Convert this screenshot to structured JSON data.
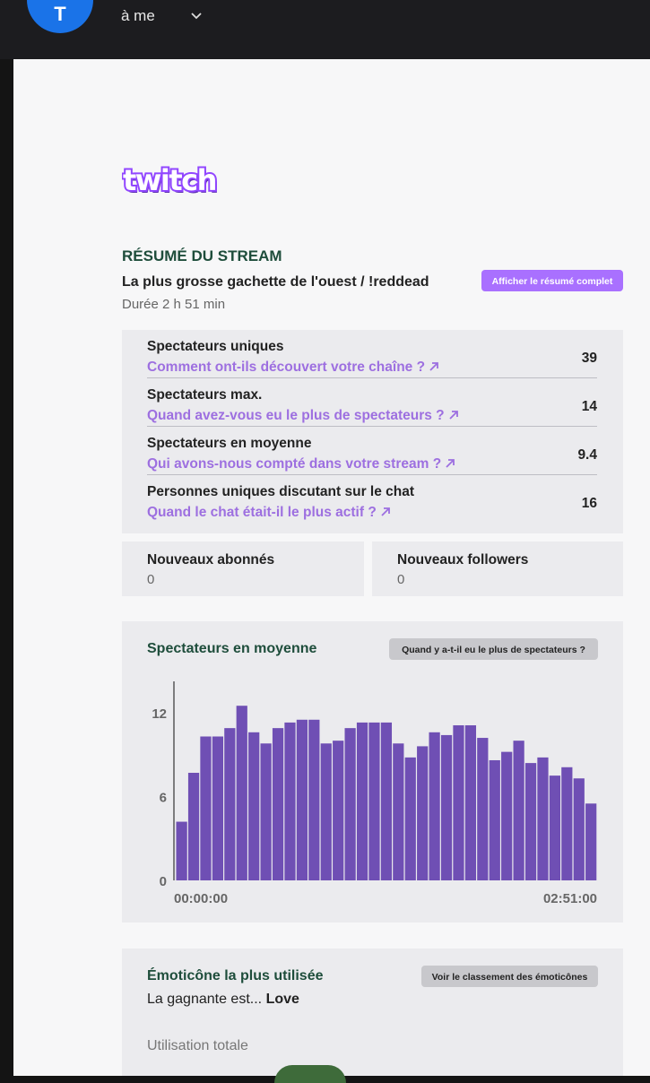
{
  "header": {
    "avatar_letter": "T",
    "recipient": "à me"
  },
  "logo": {
    "text": "twitch",
    "color": "#9146ff"
  },
  "summary": {
    "section_title": "RÉSUMÉ DU STREAM",
    "stream_title": "La plus grosse gachette de l'ouest / !reddead",
    "duration": "Durée 2 h 51 min",
    "full_summary_button": "Afficher le résumé complet"
  },
  "stats": [
    {
      "label": "Spectateurs uniques",
      "link": "Comment ont-ils découvert votre chaîne ?",
      "value": "39"
    },
    {
      "label": "Spectateurs max.",
      "link": "Quand avez-vous eu le plus de spectateurs ?",
      "value": "14"
    },
    {
      "label": "Spectateurs en moyenne",
      "link": "Qui avons-nous compté dans votre stream ?",
      "value": "9.4"
    },
    {
      "label": "Personnes uniques discutant sur le chat",
      "link": "Quand le chat était-il le plus actif ?",
      "value": "16"
    }
  ],
  "subs": {
    "label": "Nouveaux abonnés",
    "value": "0"
  },
  "followers": {
    "label": "Nouveaux followers",
    "value": "0"
  },
  "avg_chart": {
    "title": "Spectateurs en moyenne",
    "button": "Quand y a-t-il eu le plus de spectateurs ?"
  },
  "chart_data": {
    "type": "bar",
    "title": "Spectateurs en moyenne",
    "x_start_label": "00:00:00",
    "x_end_label": "02:51:00",
    "ylim": [
      0,
      12
    ],
    "yticks": [
      "0",
      "6",
      "12"
    ],
    "values": [
      4.2,
      7.7,
      10.3,
      10.3,
      10.9,
      12.5,
      10.6,
      9.8,
      10.9,
      11.3,
      11.5,
      11.5,
      9.8,
      10.0,
      10.9,
      11.3,
      11.3,
      11.3,
      9.8,
      8.8,
      9.6,
      10.6,
      10.4,
      11.1,
      11.1,
      10.2,
      8.6,
      9.2,
      10.0,
      8.4,
      8.8,
      7.5,
      8.1,
      7.3,
      5.5
    ],
    "bar_color": "#6f4fb4"
  },
  "emotes": {
    "title": "Émoticône la plus utilisée",
    "button": "Voir le classement des émoticônes",
    "winner_prefix": "La gagnante est...",
    "winner_name": "Love",
    "usage_label": "Utilisation totale"
  },
  "colors": {
    "purple_link": "#9d6fe0",
    "heading_green": "#1e4d3b",
    "button_purple": "#a970ff"
  }
}
